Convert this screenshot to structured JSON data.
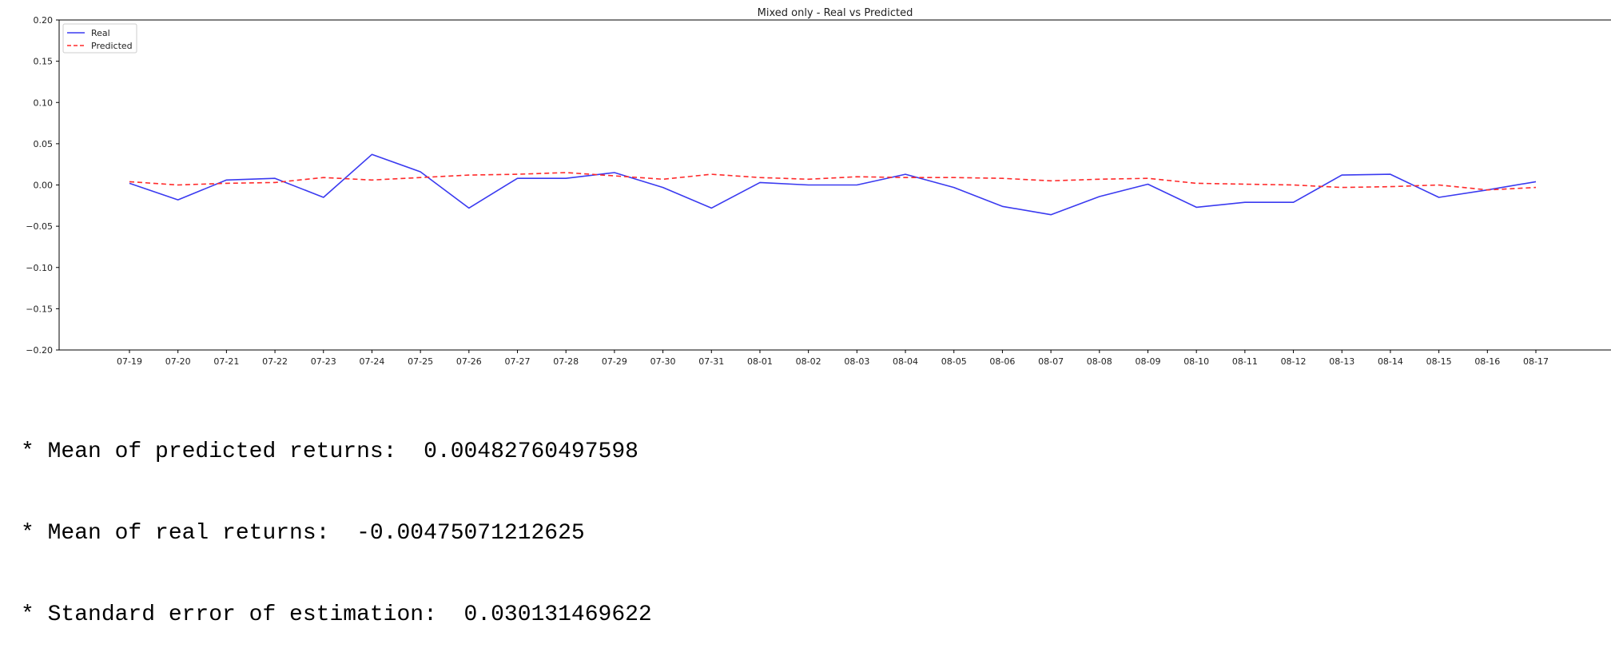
{
  "chart_data": {
    "type": "line",
    "title": "Mixed only - Real vs Predicted",
    "xlabel": "",
    "ylabel": "",
    "ylim": [
      -0.2,
      0.2
    ],
    "yticks": [
      0.2,
      0.15,
      0.1,
      0.05,
      0.0,
      -0.05,
      -0.1,
      -0.15,
      -0.2
    ],
    "ytick_labels": [
      "0.20",
      "0.15",
      "0.10",
      "0.05",
      "0.00",
      "−0.05",
      "−0.10",
      "−0.15",
      "−0.20"
    ],
    "grid": false,
    "legend_position": "top-left",
    "categories": [
      "07-19",
      "07-20",
      "07-21",
      "07-22",
      "07-23",
      "07-24",
      "07-25",
      "07-26",
      "07-27",
      "07-28",
      "07-29",
      "07-30",
      "07-31",
      "08-01",
      "08-02",
      "08-03",
      "08-04",
      "08-05",
      "08-06",
      "08-07",
      "08-08",
      "08-09",
      "08-10",
      "08-11",
      "08-12",
      "08-13",
      "08-14",
      "08-15",
      "08-16",
      "08-17"
    ],
    "series": [
      {
        "name": "Real",
        "color": "#3a3af0",
        "dash": "solid",
        "values": [
          0.002,
          -0.018,
          0.006,
          0.008,
          -0.015,
          0.037,
          0.016,
          -0.028,
          0.008,
          0.008,
          0.015,
          -0.003,
          -0.028,
          0.003,
          0.0,
          0.0,
          0.013,
          -0.003,
          -0.026,
          -0.036,
          -0.014,
          0.001,
          -0.027,
          -0.021,
          -0.021,
          0.012,
          0.013,
          -0.015,
          -0.006,
          0.004
        ]
      },
      {
        "name": "Predicted",
        "color": "#ff2a2a",
        "dash": "dashed",
        "values": [
          0.004,
          0.0,
          0.002,
          0.003,
          0.009,
          0.006,
          0.009,
          0.012,
          0.013,
          0.015,
          0.011,
          0.007,
          0.013,
          0.009,
          0.007,
          0.01,
          0.009,
          0.009,
          0.008,
          0.005,
          0.007,
          0.008,
          0.002,
          0.001,
          0.0,
          -0.003,
          -0.002,
          0.0,
          -0.006,
          -0.003
        ]
      }
    ]
  },
  "stats": {
    "predicted_mean": "* Mean of predicted returns:  0.00482760497598",
    "real_mean": "* Mean of real returns:  -0.00475071212625",
    "std_error": "* Standard error of estimation:  0.030131469622"
  }
}
